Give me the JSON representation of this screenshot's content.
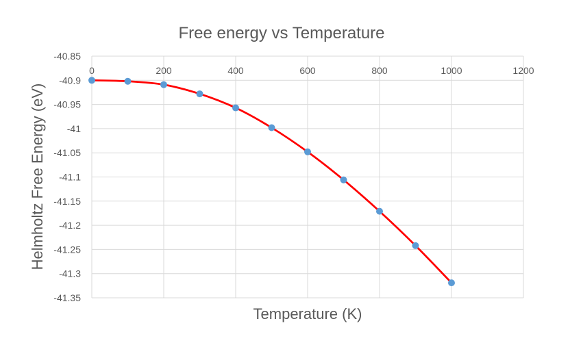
{
  "chart_data": {
    "type": "scatter",
    "title": "Free energy vs Temperature",
    "xlabel": "Temperature (K)",
    "ylabel": "Helmholtz Free Energy (eV)",
    "xlim": [
      0,
      1200
    ],
    "ylim": [
      -41.35,
      -40.85
    ],
    "x_ticks": [
      0,
      200,
      400,
      600,
      800,
      1000,
      1200
    ],
    "x_tick_labels": [
      "0",
      "200",
      "400",
      "600",
      "800",
      "1000",
      "1200"
    ],
    "y_ticks": [
      -40.85,
      -40.9,
      -40.95,
      -41,
      -41.05,
      -41.1,
      -41.15,
      -41.2,
      -41.25,
      -41.3,
      -41.35
    ],
    "y_tick_labels": [
      "-40.85",
      "-40.9",
      "-40.95",
      "-41",
      "-41.05",
      "-41.1",
      "-41.15",
      "-41.2",
      "-41.25",
      "-41.3",
      "-41.35"
    ],
    "grid": true,
    "legend": "none",
    "series": [
      {
        "name": "Free energy",
        "line_color": "#ff0000",
        "marker_color": "#5b9bd5",
        "smooth": true,
        "x": [
          0,
          100,
          200,
          300,
          400,
          500,
          600,
          700,
          800,
          900,
          1000
        ],
        "y": [
          -40.9,
          -40.902,
          -40.909,
          -40.928,
          -40.957,
          -40.998,
          -41.048,
          -41.106,
          -41.171,
          -41.242,
          -41.319
        ]
      }
    ]
  }
}
